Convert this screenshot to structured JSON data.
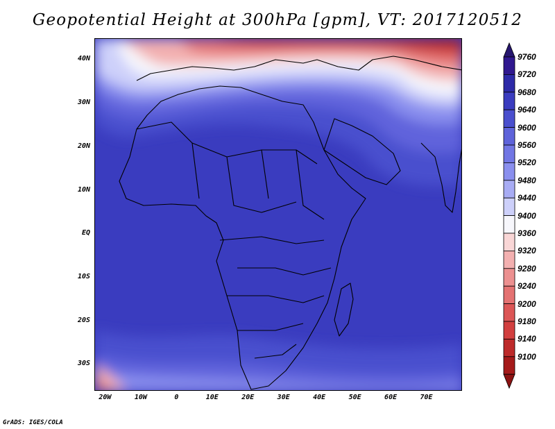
{
  "title": "Geopotential Height at 300hPa [gpm], VT: 2017120512",
  "credit": "GrADS: IGES/COLA",
  "map": {
    "lon_range": [
      -23,
      80
    ],
    "lat_range": [
      -36,
      45
    ],
    "lat_ticks": [
      {
        "value": 40,
        "label": "40N"
      },
      {
        "value": 30,
        "label": "30N"
      },
      {
        "value": 20,
        "label": "20N"
      },
      {
        "value": 10,
        "label": "10N"
      },
      {
        "value": 0,
        "label": "EQ"
      },
      {
        "value": -10,
        "label": "10S"
      },
      {
        "value": -20,
        "label": "20S"
      },
      {
        "value": -30,
        "label": "30S"
      }
    ],
    "lon_ticks": [
      {
        "value": -20,
        "label": "20W"
      },
      {
        "value": -10,
        "label": "10W"
      },
      {
        "value": 0,
        "label": "0"
      },
      {
        "value": 10,
        "label": "10E"
      },
      {
        "value": 20,
        "label": "20E"
      },
      {
        "value": 30,
        "label": "30E"
      },
      {
        "value": 40,
        "label": "40E"
      },
      {
        "value": 50,
        "label": "50E"
      },
      {
        "value": 60,
        "label": "60E"
      },
      {
        "value": 70,
        "label": "70E"
      }
    ]
  },
  "colorbar": {
    "levels": [
      {
        "value": "9760",
        "color": "#30188f"
      },
      {
        "value": "9720",
        "color": "#2d2aa8"
      },
      {
        "value": "9680",
        "color": "#3a3cbf"
      },
      {
        "value": "9640",
        "color": "#4a4fce"
      },
      {
        "value": "9600",
        "color": "#5e63da"
      },
      {
        "value": "9560",
        "color": "#7176e4"
      },
      {
        "value": "9520",
        "color": "#8a8fee"
      },
      {
        "value": "9480",
        "color": "#a8acf4"
      },
      {
        "value": "9440",
        "color": "#cdd0fa"
      },
      {
        "value": "9400",
        "color": "#f7f7fc"
      },
      {
        "value": "9360",
        "color": "#f9d6d6"
      },
      {
        "value": "9320",
        "color": "#f3b0b0"
      },
      {
        "value": "9280",
        "color": "#ec9090"
      },
      {
        "value": "9240",
        "color": "#e47272"
      },
      {
        "value": "9200",
        "color": "#dc5656"
      },
      {
        "value": "9180",
        "color": "#d23f3f"
      },
      {
        "value": "9140",
        "color": "#bd2a2a"
      },
      {
        "value": "9100",
        "color": "#a51a1a"
      }
    ],
    "top_color": "#26166f",
    "bottom_color": "#8c1212"
  }
}
